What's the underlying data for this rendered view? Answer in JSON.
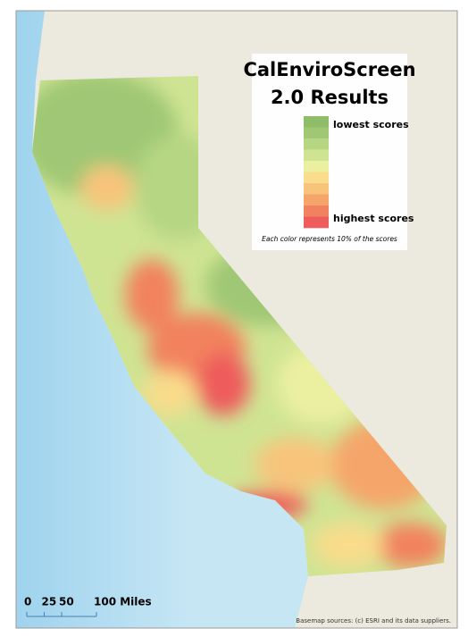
{
  "title_lines": [
    "CalEnviroScreen",
    "2.0 Results"
  ],
  "legend": {
    "low_label": "lowest scores",
    "high_label": "highest scores",
    "colors": [
      "#8fbc68",
      "#9fc774",
      "#b6d683",
      "#cfe493",
      "#ebf0a0",
      "#f9dc8c",
      "#f8c47c",
      "#f5a56a",
      "#f2825f",
      "#ee5c5c"
    ],
    "note": "Each color represents 10% of the scores"
  },
  "scale_bar": {
    "ticks": [
      0,
      25,
      50,
      {
        "value": 100,
        "label": "100 Miles"
      }
    ]
  },
  "attribution": "Basemap sources: (c) ESRI and its data suppliers."
}
